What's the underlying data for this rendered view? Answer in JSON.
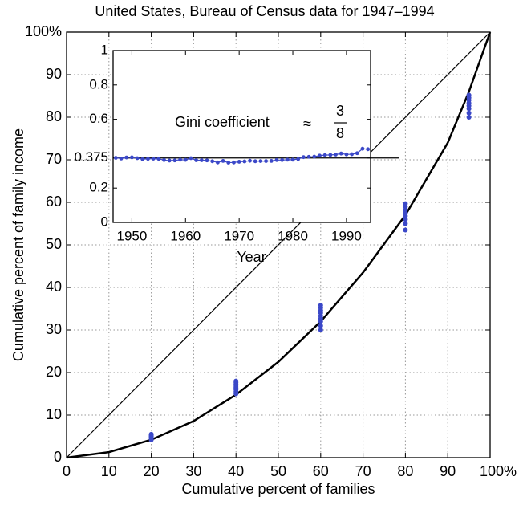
{
  "chart_data": [
    {
      "type": "scatter",
      "title": "United States, Bureau of Census data for 1947–1994",
      "xlabel": "Cumulative percent of families",
      "ylabel": "Cumulative percent of family income",
      "xlim": [
        0,
        100
      ],
      "ylim": [
        0,
        100
      ],
      "xticks": [
        0,
        10,
        20,
        30,
        40,
        50,
        60,
        70,
        80,
        90,
        {
          "value": 100,
          "label": "100%"
        }
      ],
      "yticks": [
        0,
        10,
        20,
        30,
        40,
        50,
        60,
        70,
        80,
        90,
        {
          "value": 100,
          "label": "100%"
        }
      ],
      "grid": true,
      "series": [
        {
          "type": "line",
          "color": "#000000",
          "x": [
            0,
            100
          ],
          "values": [
            0,
            100
          ]
        },
        {
          "type": "line",
          "color": "#000000",
          "x": [
            0,
            10,
            20,
            30,
            40,
            50,
            60,
            70,
            80,
            90,
            95,
            100
          ],
          "values": [
            0,
            1.3,
            4.2,
            8.6,
            14.8,
            22.5,
            32,
            43.5,
            57,
            74,
            86,
            100
          ]
        },
        {
          "type": "scatter",
          "color": "#3b48c8",
          "x": [
            20,
            20,
            20,
            20,
            20,
            20,
            20,
            20,
            40,
            40,
            40,
            40,
            40,
            40,
            40,
            40,
            40,
            60,
            60,
            60,
            60,
            60,
            60,
            60,
            60,
            60,
            80,
            80,
            80,
            80,
            80,
            80,
            80,
            80,
            95,
            95,
            95,
            95,
            95,
            95,
            95,
            95
          ],
          "values": [
            4.2,
            4.5,
            4.7,
            4.8,
            5.0,
            5.1,
            5.3,
            5.5,
            15.0,
            15.5,
            16.0,
            16.3,
            16.6,
            17.0,
            17.3,
            17.7,
            18.0,
            30,
            31,
            32,
            32.7,
            33.3,
            34,
            34.6,
            35.2,
            35.8,
            53.5,
            55,
            56,
            56.8,
            57.5,
            58.2,
            59,
            59.7,
            80,
            81,
            82,
            82.7,
            83.3,
            84,
            84.6,
            85.2
          ]
        }
      ]
    },
    {
      "type": "line",
      "xlabel": "Year",
      "annotation": {
        "text": "Gini coefficient",
        "symbol": "≈",
        "numerator": "3",
        "denominator": "8"
      },
      "xlim": [
        1946.5,
        1994.5
      ],
      "ylim": [
        0,
        1
      ],
      "xticks": [
        1950,
        1960,
        1970,
        1980,
        1990
      ],
      "yticks": [
        0,
        0.2,
        0.375,
        0.6,
        0.8,
        1
      ],
      "hline": 0.375,
      "series": [
        {
          "type": "line",
          "color": "#3b48c8",
          "x": [
            1947,
            1948,
            1949,
            1950,
            1951,
            1952,
            1953,
            1954,
            1955,
            1956,
            1957,
            1958,
            1959,
            1960,
            1961,
            1962,
            1963,
            1964,
            1965,
            1966,
            1967,
            1968,
            1969,
            1970,
            1971,
            1972,
            1973,
            1974,
            1975,
            1976,
            1977,
            1978,
            1979,
            1980,
            1981,
            1982,
            1983,
            1984,
            1985,
            1986,
            1987,
            1988,
            1989,
            1990,
            1991,
            1992,
            1993,
            1994
          ],
          "values": [
            0.376,
            0.372,
            0.378,
            0.379,
            0.374,
            0.368,
            0.37,
            0.371,
            0.37,
            0.363,
            0.36,
            0.361,
            0.365,
            0.364,
            0.374,
            0.362,
            0.362,
            0.361,
            0.356,
            0.349,
            0.358,
            0.348,
            0.349,
            0.353,
            0.355,
            0.359,
            0.356,
            0.357,
            0.357,
            0.358,
            0.363,
            0.363,
            0.365,
            0.365,
            0.369,
            0.38,
            0.382,
            0.383,
            0.389,
            0.392,
            0.393,
            0.395,
            0.401,
            0.396,
            0.397,
            0.403,
            0.429,
            0.426
          ]
        }
      ]
    }
  ]
}
